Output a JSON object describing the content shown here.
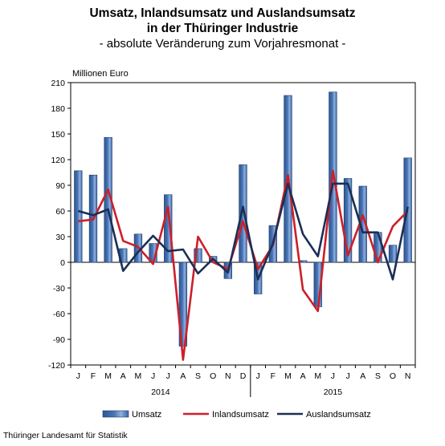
{
  "chart_data": {
    "type": "bar",
    "title_line1": "Umsatz, Inlandsumsatz und Auslandsumsatz",
    "title_line2": "in der Thüringer Industrie",
    "subtitle": "- absolute Veränderung zum Vorjahresmonat -",
    "ylabel": "Millionen Euro",
    "ylim": [
      -120,
      210
    ],
    "yticks": [
      210,
      180,
      150,
      120,
      90,
      60,
      30,
      0,
      -30,
      -60,
      -90,
      -120
    ],
    "categories": [
      "J",
      "F",
      "M",
      "A",
      "M",
      "J",
      "J",
      "A",
      "S",
      "O",
      "N",
      "D",
      "J",
      "F",
      "M",
      "A",
      "M",
      "J",
      "J",
      "A",
      "S",
      "O",
      "N"
    ],
    "years": [
      {
        "label": "2014",
        "start": 0,
        "end": 11
      },
      {
        "label": "2015",
        "start": 12,
        "end": 22
      }
    ],
    "grid": false,
    "legend_position": "bottom",
    "series": [
      {
        "name": "Umsatz",
        "kind": "bar",
        "color": "#4a76b5",
        "values": [
          107,
          102,
          146,
          16,
          33,
          22,
          79,
          -98,
          16,
          7,
          -19,
          114,
          -37,
          43,
          195,
          2,
          -52,
          199,
          98,
          89,
          35,
          20,
          122
        ]
      },
      {
        "name": "Inlandsumsatz",
        "kind": "line",
        "color": "#cc1f2a",
        "values": [
          48,
          50,
          85,
          25,
          18,
          -2,
          65,
          -114,
          30,
          0,
          -8,
          48,
          -8,
          20,
          102,
          -32,
          -57,
          107,
          8,
          55,
          0,
          42,
          60
        ]
      },
      {
        "name": "Auslandsumsatz",
        "kind": "line",
        "color": "#1b2f55",
        "values": [
          60,
          55,
          62,
          -10,
          12,
          31,
          13,
          15,
          -13,
          4,
          -12,
          65,
          -20,
          22,
          92,
          33,
          7,
          92,
          92,
          35,
          35,
          -20,
          65
        ]
      }
    ]
  },
  "footer": "Thüringer Landesamt für Statistik"
}
